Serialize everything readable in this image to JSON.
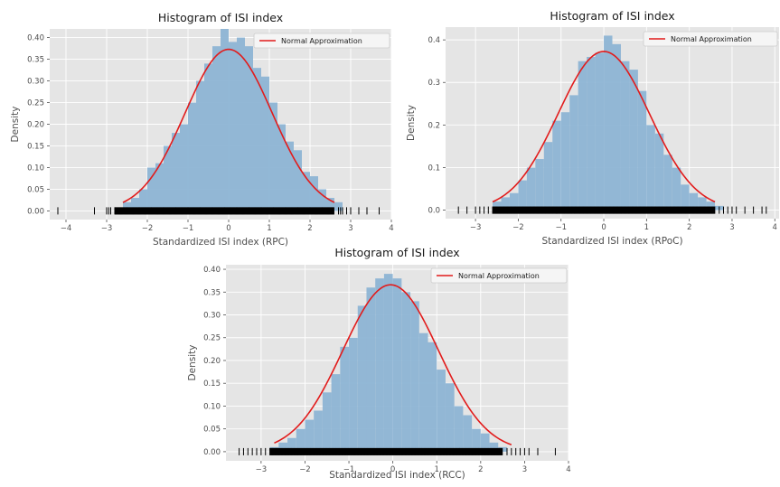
{
  "colors": {
    "panel_bg": "#e5e5e5",
    "grid": "#ffffff",
    "bar_fill": "#8db4d4",
    "curve": "#e21b1b",
    "rug": "#000000",
    "text": "#4d4d4d",
    "title": "#1a1a1a"
  },
  "chart_data": [
    {
      "type": "bar",
      "title": "Histogram of ISI index",
      "xlabel": "Standardized ISI index (RPC)",
      "ylabel": "Density",
      "legend": {
        "label": "Normal Approximation",
        "position": "top-right"
      },
      "grid": true,
      "xlim": [
        -4.4,
        4.0
      ],
      "ylim": [
        -0.02,
        0.42
      ],
      "xticks": [
        -4,
        -3,
        -2,
        -1,
        0,
        1,
        2,
        3,
        4
      ],
      "yticks": [
        0.0,
        0.05,
        0.1,
        0.15,
        0.2,
        0.25,
        0.3,
        0.35,
        0.4
      ],
      "ytick_labels": [
        "0.00",
        "0.05",
        "0.10",
        "0.15",
        "0.20",
        "0.25",
        "0.30",
        "0.35",
        "0.40"
      ],
      "bins": [
        {
          "x0": -2.6,
          "x1": -2.4,
          "value": 0.02
        },
        {
          "x0": -2.4,
          "x1": -2.2,
          "value": 0.03
        },
        {
          "x0": -2.2,
          "x1": -2.0,
          "value": 0.05
        },
        {
          "x0": -2.0,
          "x1": -1.8,
          "value": 0.1
        },
        {
          "x0": -1.8,
          "x1": -1.6,
          "value": 0.11
        },
        {
          "x0": -1.6,
          "x1": -1.4,
          "value": 0.15
        },
        {
          "x0": -1.4,
          "x1": -1.2,
          "value": 0.18
        },
        {
          "x0": -1.2,
          "x1": -1.0,
          "value": 0.2
        },
        {
          "x0": -1.0,
          "x1": -0.8,
          "value": 0.25
        },
        {
          "x0": -0.8,
          "x1": -0.6,
          "value": 0.3
        },
        {
          "x0": -0.6,
          "x1": -0.4,
          "value": 0.34
        },
        {
          "x0": -0.4,
          "x1": -0.2,
          "value": 0.38
        },
        {
          "x0": -0.2,
          "x1": 0.0,
          "value": 0.42
        },
        {
          "x0": 0.0,
          "x1": 0.2,
          "value": 0.39
        },
        {
          "x0": 0.2,
          "x1": 0.4,
          "value": 0.4
        },
        {
          "x0": 0.4,
          "x1": 0.6,
          "value": 0.38
        },
        {
          "x0": 0.6,
          "x1": 0.8,
          "value": 0.33
        },
        {
          "x0": 0.8,
          "x1": 1.0,
          "value": 0.31
        },
        {
          "x0": 1.0,
          "x1": 1.2,
          "value": 0.25
        },
        {
          "x0": 1.2,
          "x1": 1.4,
          "value": 0.2
        },
        {
          "x0": 1.4,
          "x1": 1.6,
          "value": 0.16
        },
        {
          "x0": 1.6,
          "x1": 1.8,
          "value": 0.14
        },
        {
          "x0": 1.8,
          "x1": 2.0,
          "value": 0.09
        },
        {
          "x0": 2.0,
          "x1": 2.2,
          "value": 0.08
        },
        {
          "x0": 2.2,
          "x1": 2.4,
          "value": 0.05
        },
        {
          "x0": 2.4,
          "x1": 2.6,
          "value": 0.03
        },
        {
          "x0": 2.6,
          "x1": 2.8,
          "value": 0.02
        }
      ],
      "curve": {
        "mean": 0.0,
        "std": 1.07,
        "range": [
          -2.6,
          2.6
        ]
      },
      "rug": {
        "dense_range": [
          -2.8,
          2.6
        ],
        "sparse_points": [
          -4.2,
          -3.3,
          -3.0,
          -2.95,
          -2.9,
          2.7,
          2.75,
          2.8,
          2.9,
          3.0,
          3.2,
          3.4,
          3.7
        ]
      }
    },
    {
      "type": "bar",
      "title": "Histogram of ISI index",
      "xlabel": "Standardized ISI index (RPoC)",
      "ylabel": "Density",
      "legend": {
        "label": "Normal Approximation",
        "position": "top-right"
      },
      "grid": true,
      "xlim": [
        -3.7,
        4.1
      ],
      "ylim": [
        -0.02,
        0.43
      ],
      "xticks": [
        -3,
        -2,
        -1,
        0,
        1,
        2,
        3,
        4
      ],
      "yticks": [
        0.0,
        0.1,
        0.2,
        0.3,
        0.4
      ],
      "ytick_labels": [
        "0.0",
        "0.1",
        "0.2",
        "0.3",
        "0.4"
      ],
      "bins": [
        {
          "x0": -2.6,
          "x1": -2.4,
          "value": 0.02
        },
        {
          "x0": -2.4,
          "x1": -2.2,
          "value": 0.03
        },
        {
          "x0": -2.2,
          "x1": -2.0,
          "value": 0.04
        },
        {
          "x0": -2.0,
          "x1": -1.8,
          "value": 0.07
        },
        {
          "x0": -1.8,
          "x1": -1.6,
          "value": 0.1
        },
        {
          "x0": -1.6,
          "x1": -1.4,
          "value": 0.12
        },
        {
          "x0": -1.4,
          "x1": -1.2,
          "value": 0.16
        },
        {
          "x0": -1.2,
          "x1": -1.0,
          "value": 0.21
        },
        {
          "x0": -1.0,
          "x1": -0.8,
          "value": 0.23
        },
        {
          "x0": -0.8,
          "x1": -0.6,
          "value": 0.27
        },
        {
          "x0": -0.6,
          "x1": -0.4,
          "value": 0.35
        },
        {
          "x0": -0.4,
          "x1": -0.2,
          "value": 0.36
        },
        {
          "x0": -0.2,
          "x1": 0.0,
          "value": 0.37
        },
        {
          "x0": 0.0,
          "x1": 0.2,
          "value": 0.41
        },
        {
          "x0": 0.2,
          "x1": 0.4,
          "value": 0.39
        },
        {
          "x0": 0.4,
          "x1": 0.6,
          "value": 0.35
        },
        {
          "x0": 0.6,
          "x1": 0.8,
          "value": 0.33
        },
        {
          "x0": 0.8,
          "x1": 1.0,
          "value": 0.28
        },
        {
          "x0": 1.0,
          "x1": 1.2,
          "value": 0.2
        },
        {
          "x0": 1.2,
          "x1": 1.4,
          "value": 0.18
        },
        {
          "x0": 1.4,
          "x1": 1.6,
          "value": 0.13
        },
        {
          "x0": 1.6,
          "x1": 1.8,
          "value": 0.1
        },
        {
          "x0": 1.8,
          "x1": 2.0,
          "value": 0.06
        },
        {
          "x0": 2.0,
          "x1": 2.2,
          "value": 0.04
        },
        {
          "x0": 2.2,
          "x1": 2.4,
          "value": 0.03
        },
        {
          "x0": 2.4,
          "x1": 2.6,
          "value": 0.02
        },
        {
          "x0": 2.6,
          "x1": 2.8,
          "value": 0.01
        }
      ],
      "curve": {
        "mean": 0.0,
        "std": 1.07,
        "range": [
          -2.6,
          2.6
        ]
      },
      "rug": {
        "dense_range": [
          -2.6,
          2.6
        ],
        "sparse_points": [
          -3.4,
          -3.2,
          -3.0,
          -2.9,
          -2.8,
          -2.7,
          2.7,
          2.8,
          2.9,
          3.0,
          3.1,
          3.3,
          3.5,
          3.7,
          3.8
        ]
      }
    },
    {
      "type": "bar",
      "title": "Histogram of ISI index",
      "xlabel": "Standardized ISI index (RCC)",
      "ylabel": "Density",
      "legend": {
        "label": "Normal Approximation",
        "position": "top-right"
      },
      "grid": true,
      "xlim": [
        -3.8,
        4.0
      ],
      "ylim": [
        -0.02,
        0.41
      ],
      "xticks": [
        -3,
        -2,
        -1,
        0,
        1,
        2,
        3,
        4
      ],
      "yticks": [
        0.0,
        0.05,
        0.1,
        0.15,
        0.2,
        0.25,
        0.3,
        0.35,
        0.4
      ],
      "ytick_labels": [
        "0.00",
        "0.05",
        "0.10",
        "0.15",
        "0.20",
        "0.25",
        "0.30",
        "0.35",
        "0.40"
      ],
      "bins": [
        {
          "x0": -2.8,
          "x1": -2.6,
          "value": 0.01
        },
        {
          "x0": -2.6,
          "x1": -2.4,
          "value": 0.02
        },
        {
          "x0": -2.4,
          "x1": -2.2,
          "value": 0.03
        },
        {
          "x0": -2.2,
          "x1": -2.0,
          "value": 0.05
        },
        {
          "x0": -2.0,
          "x1": -1.8,
          "value": 0.07
        },
        {
          "x0": -1.8,
          "x1": -1.6,
          "value": 0.09
        },
        {
          "x0": -1.6,
          "x1": -1.4,
          "value": 0.13
        },
        {
          "x0": -1.4,
          "x1": -1.2,
          "value": 0.17
        },
        {
          "x0": -1.2,
          "x1": -1.0,
          "value": 0.23
        },
        {
          "x0": -1.0,
          "x1": -0.8,
          "value": 0.25
        },
        {
          "x0": -0.8,
          "x1": -0.6,
          "value": 0.32
        },
        {
          "x0": -0.6,
          "x1": -0.4,
          "value": 0.36
        },
        {
          "x0": -0.4,
          "x1": -0.2,
          "value": 0.38
        },
        {
          "x0": -0.2,
          "x1": 0.0,
          "value": 0.39
        },
        {
          "x0": 0.0,
          "x1": 0.2,
          "value": 0.38
        },
        {
          "x0": 0.2,
          "x1": 0.4,
          "value": 0.35
        },
        {
          "x0": 0.4,
          "x1": 0.6,
          "value": 0.33
        },
        {
          "x0": 0.6,
          "x1": 0.8,
          "value": 0.26
        },
        {
          "x0": 0.8,
          "x1": 1.0,
          "value": 0.24
        },
        {
          "x0": 1.0,
          "x1": 1.2,
          "value": 0.18
        },
        {
          "x0": 1.2,
          "x1": 1.4,
          "value": 0.15
        },
        {
          "x0": 1.4,
          "x1": 1.6,
          "value": 0.1
        },
        {
          "x0": 1.6,
          "x1": 1.8,
          "value": 0.08
        },
        {
          "x0": 1.8,
          "x1": 2.0,
          "value": 0.05
        },
        {
          "x0": 2.0,
          "x1": 2.2,
          "value": 0.04
        },
        {
          "x0": 2.2,
          "x1": 2.4,
          "value": 0.02
        },
        {
          "x0": 2.4,
          "x1": 2.6,
          "value": 0.01
        }
      ],
      "curve": {
        "mean": -0.05,
        "std": 1.09,
        "range": [
          -2.7,
          2.7
        ]
      },
      "rug": {
        "dense_range": [
          -2.8,
          2.5
        ],
        "sparse_points": [
          -3.5,
          -3.4,
          -3.3,
          -3.2,
          -3.1,
          -3.0,
          -2.9,
          2.6,
          2.7,
          2.8,
          2.9,
          3.0,
          3.1,
          3.3,
          3.7
        ]
      }
    }
  ]
}
